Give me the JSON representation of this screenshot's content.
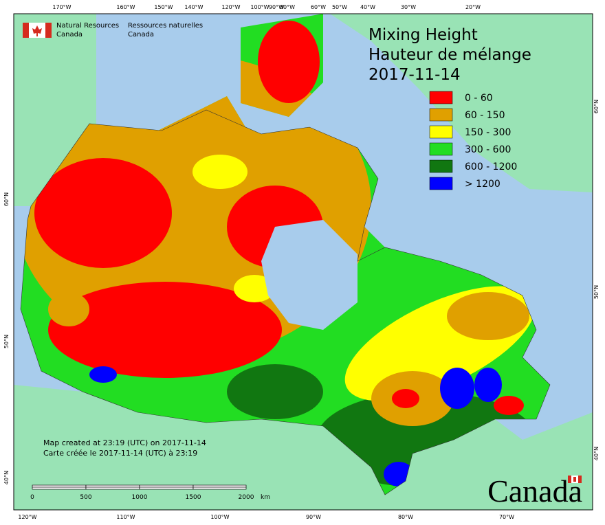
{
  "header": {
    "agency_en": [
      "Natural Resources",
      "Canada"
    ],
    "agency_fr": [
      "Ressources naturelles",
      "Canada"
    ]
  },
  "title": [
    "Mixing Height",
    "Hauteur de mélange",
    "2017-11-14"
  ],
  "legend": [
    {
      "label": "0 - 60",
      "color": "#ff0000"
    },
    {
      "label": "60 - 150",
      "color": "#e0a000"
    },
    {
      "label": "150 - 300",
      "color": "#ffff00"
    },
    {
      "label": "300 - 600",
      "color": "#22dd22"
    },
    {
      "label": "600 - 1200",
      "color": "#117711"
    },
    {
      "label": "> 1200",
      "color": "#0000ff"
    }
  ],
  "top_axis": [
    "170°W",
    "160°W",
    "150°W",
    "140°W",
    "120°W",
    "100°W",
    "90°W",
    "80°W",
    "60°W",
    "50°W",
    "40°W",
    "30°W",
    "20°W"
  ],
  "bottom_axis": [
    "120°W",
    "110°W",
    "100°W",
    "90°W",
    "80°W",
    "70°W"
  ],
  "left_axis": [
    "60°N",
    "50°N",
    "40°N"
  ],
  "right_axis": [
    "60°N",
    "50°N",
    "40°N"
  ],
  "footer": [
    "Map created at 23:19 (UTC) on 2017-11-14",
    "Carte créée le 2017-11-14 (UTC) à 23:19"
  ],
  "scale_bar": {
    "labels": [
      "0",
      "500",
      "1000",
      "1500",
      "2000"
    ],
    "unit": "km"
  },
  "wordmark": "Canada"
}
